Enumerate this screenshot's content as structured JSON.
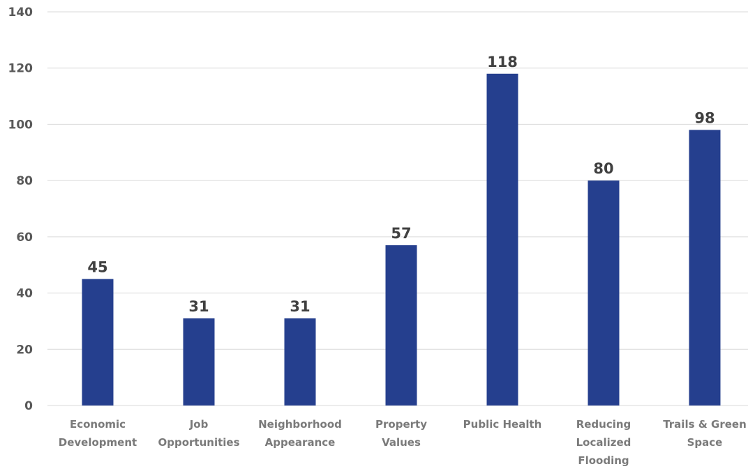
{
  "chart_data": {
    "type": "bar",
    "title": "",
    "xlabel": "",
    "ylabel": "",
    "categories": [
      [
        "Economic",
        "Development"
      ],
      [
        "Job",
        "Opportunities"
      ],
      [
        "Neighborhood",
        "Appearance"
      ],
      [
        "Property",
        "Values"
      ],
      [
        "Public Health"
      ],
      [
        "Reducing",
        "Localized",
        "Flooding"
      ],
      [
        "Trails & Green",
        "Space"
      ]
    ],
    "values": [
      45,
      31,
      31,
      57,
      118,
      80,
      98
    ],
    "ylim": [
      0,
      140
    ],
    "yticks": [
      0,
      20,
      40,
      60,
      80,
      100,
      120,
      140
    ],
    "grid": true,
    "legend": "none",
    "bar_color": "#253f8e",
    "data_labels": true
  }
}
